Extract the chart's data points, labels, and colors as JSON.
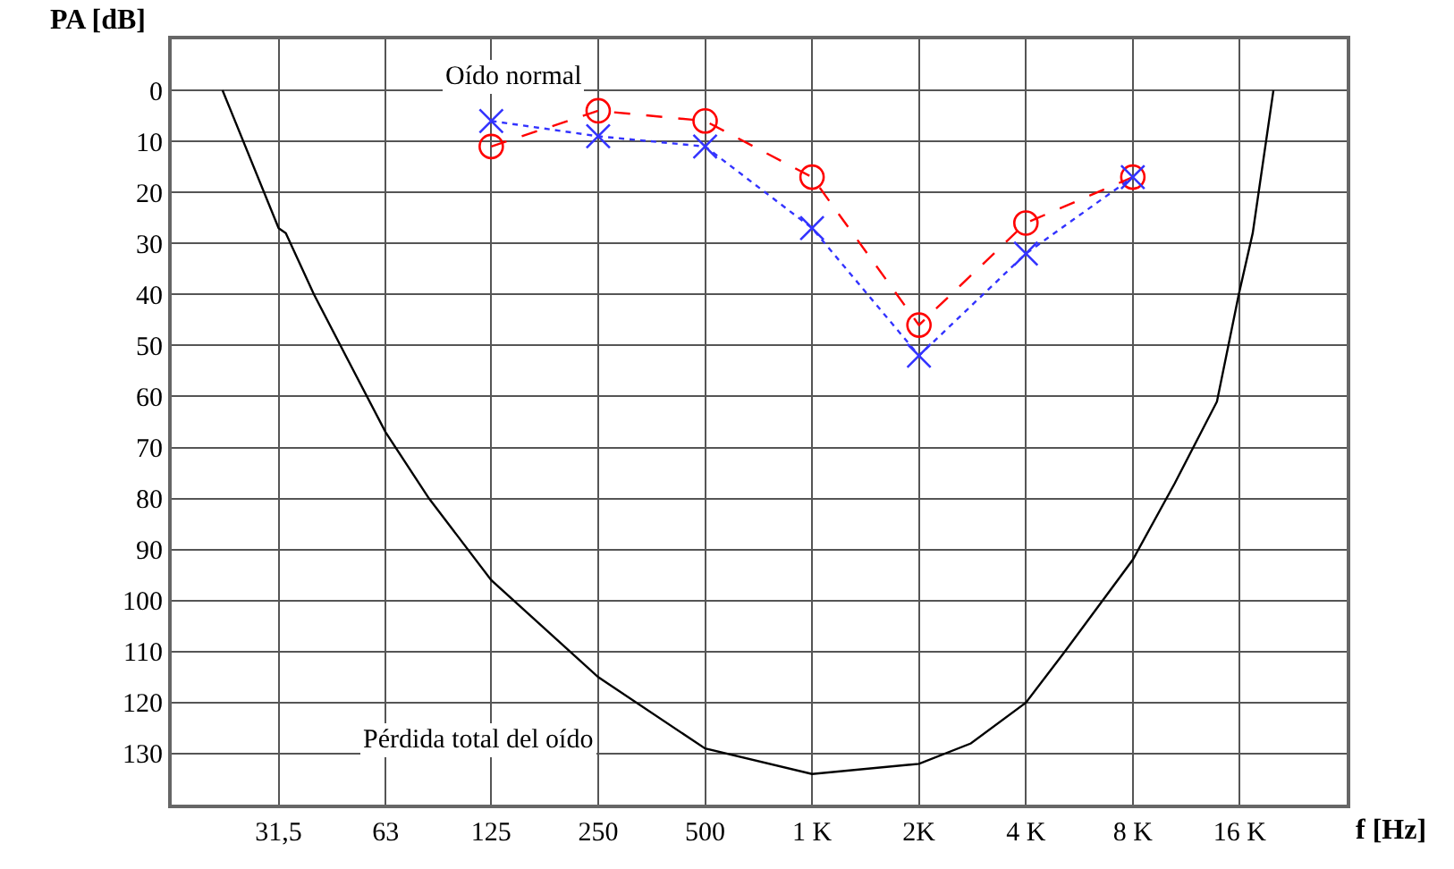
{
  "chart_data": {
    "type": "line",
    "xlabel": "f [Hz]",
    "ylabel": "PA [dB]",
    "log": "x",
    "xlim": [
      15.75,
      32000
    ],
    "ylim": [
      140,
      -10
    ],
    "xticks": [
      {
        "value": 31.5,
        "label": "31,5"
      },
      63,
      125,
      250,
      500,
      {
        "value": 1000,
        "label": "1 K"
      },
      {
        "value": 2000,
        "label": "2K"
      },
      {
        "value": 4000,
        "label": "4 K"
      },
      {
        "value": 8000,
        "label": "8 K"
      },
      {
        "value": 16000,
        "label": "16 K"
      }
    ],
    "yticks": [
      0,
      10,
      20,
      30,
      40,
      50,
      60,
      70,
      80,
      90,
      100,
      110,
      120,
      130
    ],
    "grid": true,
    "series": [
      {
        "color": "#ff0000",
        "marker": "circle",
        "line_style": "dashed",
        "x": [
          125,
          250,
          500,
          1000,
          2000,
          4000,
          8000
        ],
        "values": [
          11,
          4,
          6,
          17,
          46,
          26,
          17
        ]
      },
      {
        "color": "#3333ff",
        "marker": "cross",
        "line_style": "dotted",
        "x": [
          125,
          250,
          500,
          1000,
          2000,
          4000,
          8000
        ],
        "values": [
          6,
          9,
          11,
          27,
          52,
          32,
          17
        ]
      },
      {
        "color": "#000000",
        "marker": "none",
        "line_style": "solid",
        "x": [
          21.9,
          31.5,
          33,
          39.6,
          49.5,
          63,
          83.5,
          125,
          250,
          500,
          1000,
          2000,
          2800,
          4000,
          5150,
          8000,
          10500,
          13800,
          15900,
          17400,
          19900
        ],
        "values": [
          0,
          27,
          28,
          40,
          53,
          67,
          80,
          96,
          115,
          129,
          134,
          132,
          128,
          120,
          110,
          92,
          77,
          61,
          40,
          28,
          0
        ]
      }
    ],
    "annotations": [
      "Oído normal",
      "Pérdida total del oído"
    ]
  }
}
